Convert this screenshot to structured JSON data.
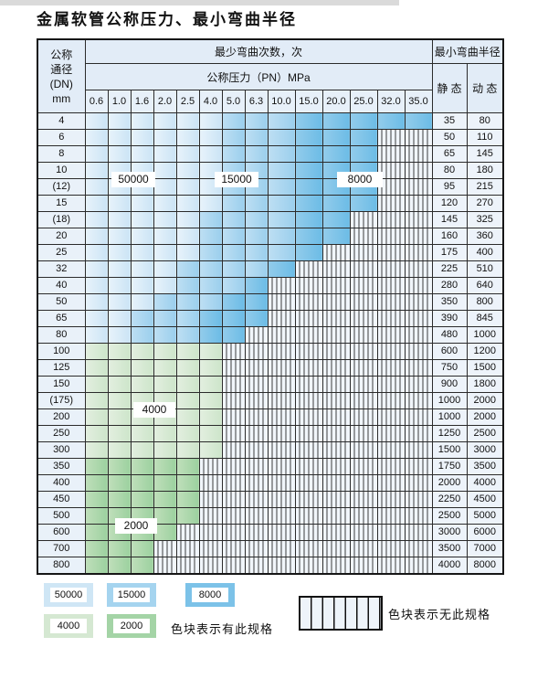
{
  "title": "金属软管公称压力、最小弯曲半径",
  "table": {
    "corner": {
      "line1": "公称",
      "line2": "通径",
      "line3": "(DN)",
      "line4": "mm"
    },
    "bend_cycles_header": "最少弯曲次数，次",
    "pressure_header": "公称压力（PN）MPa",
    "radius_header": "最小弯曲半径",
    "static_label": "静 态",
    "dynamic_label": "动 态",
    "pressure_columns": [
      "0.6",
      "1.0",
      "1.6",
      "2.0",
      "2.5",
      "4.0",
      "5.0",
      "6.3",
      "10.0",
      "15.0",
      "20.0",
      "25.0",
      "32.0",
      "35.0"
    ],
    "zone_codes": {
      "a": "50000",
      "b": "15000",
      "c": "8000",
      "d": "4000",
      "e": "2000",
      "h": "no-spec"
    },
    "rows": [
      {
        "dn": "4",
        "zones": "aaaaaabbbccccc",
        "static": "35",
        "dynamic": "80"
      },
      {
        "dn": "6",
        "zones": "aaaaaabbbccchh",
        "static": "50",
        "dynamic": "110"
      },
      {
        "dn": "8",
        "zones": "aaaaaabbbccchh",
        "static": "65",
        "dynamic": "145"
      },
      {
        "dn": "10",
        "zones": "aaaaaabbbccchh",
        "static": "80",
        "dynamic": "180"
      },
      {
        "dn": "(12)",
        "zones": "aaaaaabbbccchh",
        "static": "95",
        "dynamic": "215"
      },
      {
        "dn": "15",
        "zones": "aaaaaabbbccchh",
        "static": "120",
        "dynamic": "270"
      },
      {
        "dn": "(18)",
        "zones": "aaaaabbbbcchhh",
        "static": "145",
        "dynamic": "325"
      },
      {
        "dn": "20",
        "zones": "aaaaabbbbcchhh",
        "static": "160",
        "dynamic": "360"
      },
      {
        "dn": "25",
        "zones": "aaaaabbbbchhhh",
        "static": "175",
        "dynamic": "400"
      },
      {
        "dn": "32",
        "zones": "aaaabbbbchhhhh",
        "static": "225",
        "dynamic": "510"
      },
      {
        "dn": "40",
        "zones": "aaaabbbchhhhhh",
        "static": "280",
        "dynamic": "640"
      },
      {
        "dn": "50",
        "zones": "aaabbbcchhhhhh",
        "static": "350",
        "dynamic": "800"
      },
      {
        "dn": "65",
        "zones": "aabbbccchhhhhh",
        "static": "390",
        "dynamic": "845"
      },
      {
        "dn": "80",
        "zones": "aabbbcchhhhhhh",
        "static": "480",
        "dynamic": "1000"
      },
      {
        "dn": "100",
        "zones": "ddddddhhhhhhhh",
        "static": "600",
        "dynamic": "1200"
      },
      {
        "dn": "125",
        "zones": "ddddddhhhhhhhh",
        "static": "750",
        "dynamic": "1500"
      },
      {
        "dn": "150",
        "zones": "ddddddhhhhhhhh",
        "static": "900",
        "dynamic": "1800"
      },
      {
        "dn": "(175)",
        "zones": "ddddddhhhhhhhh",
        "static": "1000",
        "dynamic": "2000"
      },
      {
        "dn": "200",
        "zones": "ddddddhhhhhhhh",
        "static": "1000",
        "dynamic": "2000"
      },
      {
        "dn": "250",
        "zones": "ddddddhhhhhhhh",
        "static": "1250",
        "dynamic": "2500"
      },
      {
        "dn": "300",
        "zones": "ddddddhhhhhhhh",
        "static": "1500",
        "dynamic": "3000"
      },
      {
        "dn": "350",
        "zones": "eeeeehhhhhhhhh",
        "static": "1750",
        "dynamic": "3500"
      },
      {
        "dn": "400",
        "zones": "eeeeehhhhhhhhh",
        "static": "2000",
        "dynamic": "4000"
      },
      {
        "dn": "450",
        "zones": "eeeeehhhhhhhhh",
        "static": "2250",
        "dynamic": "4500"
      },
      {
        "dn": "500",
        "zones": "eeeeehhhhhhhhh",
        "static": "2500",
        "dynamic": "5000"
      },
      {
        "dn": "600",
        "zones": "eeeehhhhhhhhhh",
        "static": "3000",
        "dynamic": "6000"
      },
      {
        "dn": "700",
        "zones": "eeehhhhhhhhhhh",
        "static": "3500",
        "dynamic": "7000"
      },
      {
        "dn": "800",
        "zones": "eeehhhhhhhhhhh",
        "static": "4000",
        "dynamic": "8000"
      }
    ],
    "zone_labels": {
      "blue_50000": "50000",
      "blue_15000": "15000",
      "blue_8000": "8000",
      "green_4000": "4000",
      "green_2000": "2000"
    }
  },
  "legend": {
    "items": [
      {
        "value": "50000"
      },
      {
        "value": "15000"
      },
      {
        "value": "8000"
      },
      {
        "value": "4000"
      },
      {
        "value": "2000"
      }
    ],
    "has_spec_note": "色块表示有此规格",
    "no_spec_note": "色块表示无此规格"
  },
  "colors": {
    "zone_50000": "#cfe6f5",
    "zone_15000": "#a5d4ef",
    "zone_8000": "#7cc2e8",
    "zone_4000": "#d5e8d2",
    "zone_2000": "#a4d4a6",
    "grid_line": "#2b2b2b"
  }
}
